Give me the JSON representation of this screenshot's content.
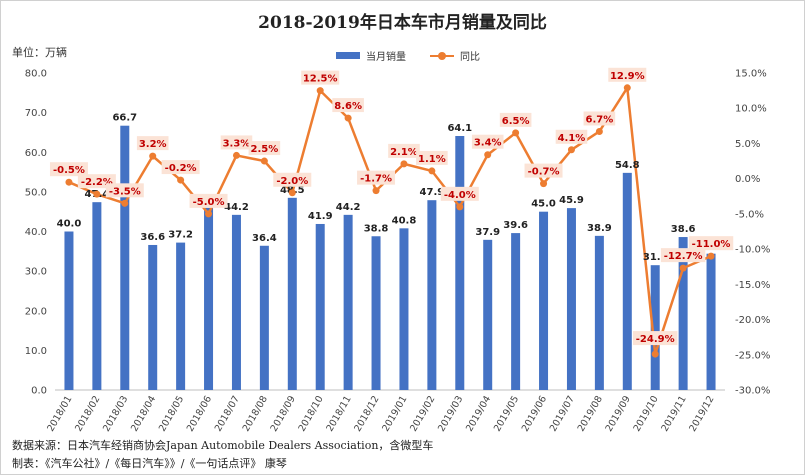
{
  "chart_data": {
    "type": "bar",
    "title": "2018-2019年日本车市月销量及同比",
    "unit_label": "单位：万辆",
    "categories": [
      "2018/01",
      "2018/02",
      "2018/03",
      "2018/04",
      "2018/05",
      "2018/06",
      "2018/07",
      "2018/08",
      "2018/09",
      "2018/10",
      "2018/11",
      "2018/12",
      "2019/01",
      "2019/02",
      "2019/03",
      "2019/04",
      "2019/05",
      "2019/06",
      "2019/07",
      "2019/08",
      "2019/09",
      "2019/10",
      "2019/11",
      "2019/12"
    ],
    "series": [
      {
        "name": "当月销量",
        "type": "bar",
        "axis": "left",
        "color": "#4472c4",
        "values": [
          40.0,
          47.4,
          66.7,
          36.6,
          37.2,
          46.0,
          44.2,
          36.4,
          48.5,
          41.9,
          44.2,
          38.8,
          40.8,
          47.9,
          64.1,
          37.9,
          39.6,
          45.0,
          45.9,
          38.9,
          54.8,
          31.5,
          38.6,
          34.4
        ],
        "labels": [
          "40.0",
          "47.4",
          "66.7",
          "36.6",
          "37.2",
          "",
          "44.2",
          "36.4",
          "48.5",
          "41.9",
          "44.2",
          "38.8",
          "40.8",
          "47.9",
          "64.1",
          "37.9",
          "39.6",
          "45.0",
          "45.9",
          "38.9",
          "54.8",
          "31.5",
          "38.6",
          ""
        ]
      },
      {
        "name": "同比",
        "type": "line",
        "axis": "right",
        "color": "#ed7d31",
        "values": [
          -0.5,
          -2.2,
          -3.5,
          3.2,
          -0.2,
          -5.0,
          3.3,
          2.5,
          -2.0,
          12.5,
          8.6,
          -1.7,
          2.1,
          1.1,
          -4.0,
          3.4,
          6.5,
          -0.7,
          4.1,
          6.7,
          12.9,
          -24.9,
          -12.7,
          -11.0
        ],
        "labels": [
          "-0.5%",
          "-2.2%",
          "-3.5%",
          "3.2%",
          "-0.2%",
          "-5.0%",
          "3.3%",
          "2.5%",
          "-2.0%",
          "12.5%",
          "8.6%",
          "-1.7%",
          "2.1%",
          "1.1%",
          "-4.0%",
          "3.4%",
          "6.5%",
          "-0.7%",
          "4.1%",
          "6.7%",
          "12.9%",
          "-24.9%",
          "-12.7%",
          "-11.0%"
        ]
      }
    ],
    "ylim_left": [
      0,
      80
    ],
    "yticks_left": [
      "0.0",
      "10.0",
      "20.0",
      "30.0",
      "40.0",
      "50.0",
      "60.0",
      "70.0",
      "80.0"
    ],
    "ylim_right": [
      -30,
      15
    ],
    "yticks_right": [
      "-30.0%",
      "-25.0%",
      "-20.0%",
      "-15.0%",
      "-10.0%",
      "-5.0%",
      "0.0%",
      "5.0%",
      "10.0%",
      "15.0%"
    ],
    "grid": false,
    "legend": "top-center",
    "source": "数据来源：日本汽车经销商协会Japan Automobile Dealers Association，含微型车",
    "credit": "制表：《汽车公社》/《每日汽车》》/《一句话点评》 康琴"
  }
}
